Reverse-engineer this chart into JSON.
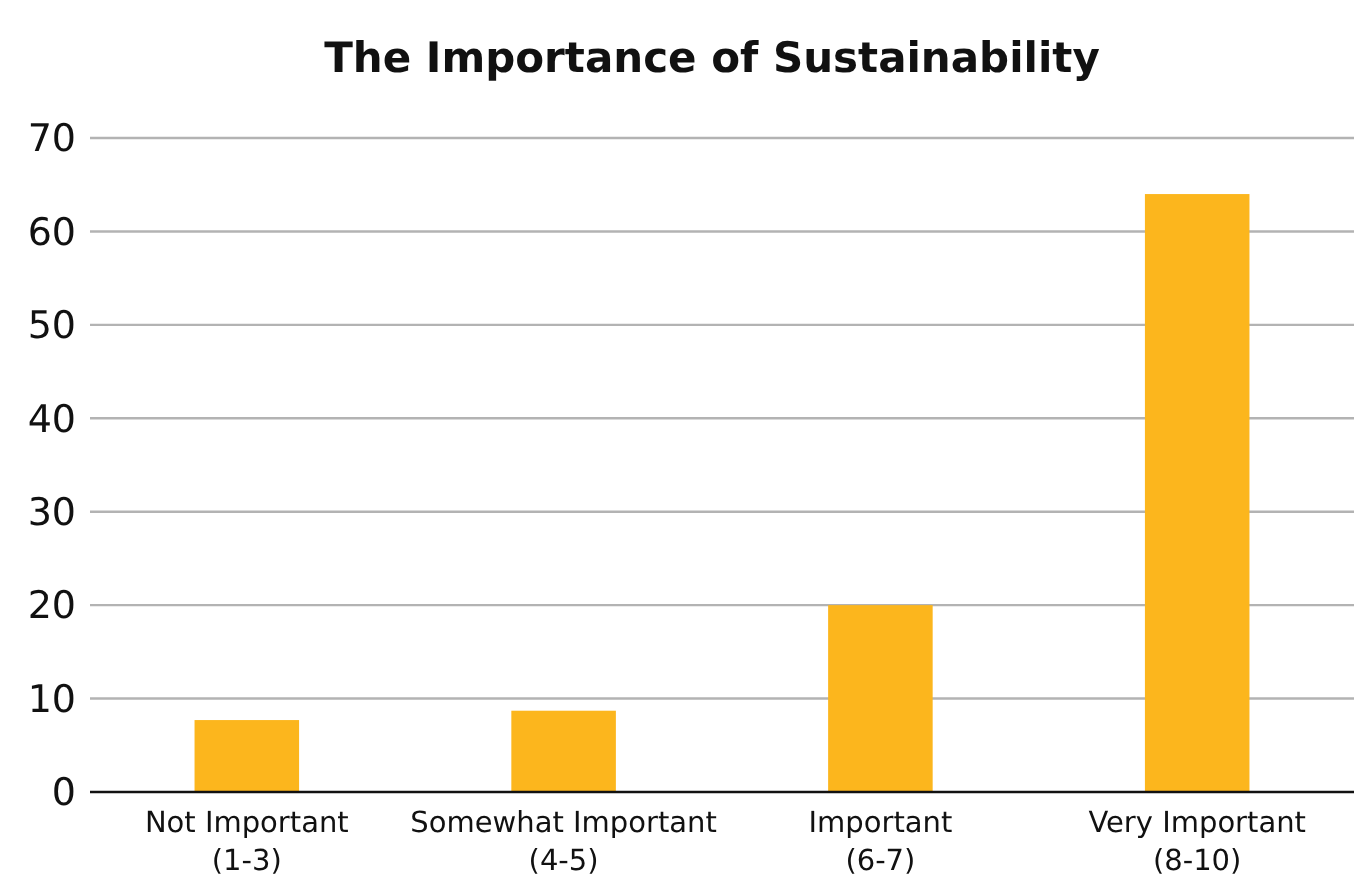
{
  "chart_data": {
    "type": "bar",
    "title": "The Importance of Sustainability",
    "categories": [
      "Not Important\n(1-3)",
      "Somewhat Important\n(4-5)",
      "Important\n(6-7)",
      "Very Important\n(8-10)"
    ],
    "values": [
      7.7,
      8.7,
      20,
      64
    ],
    "color": "#fcb61d",
    "ylim": [
      0,
      70
    ],
    "yticks": [
      0,
      10,
      20,
      30,
      40,
      50,
      60,
      70
    ],
    "grid": "y"
  }
}
